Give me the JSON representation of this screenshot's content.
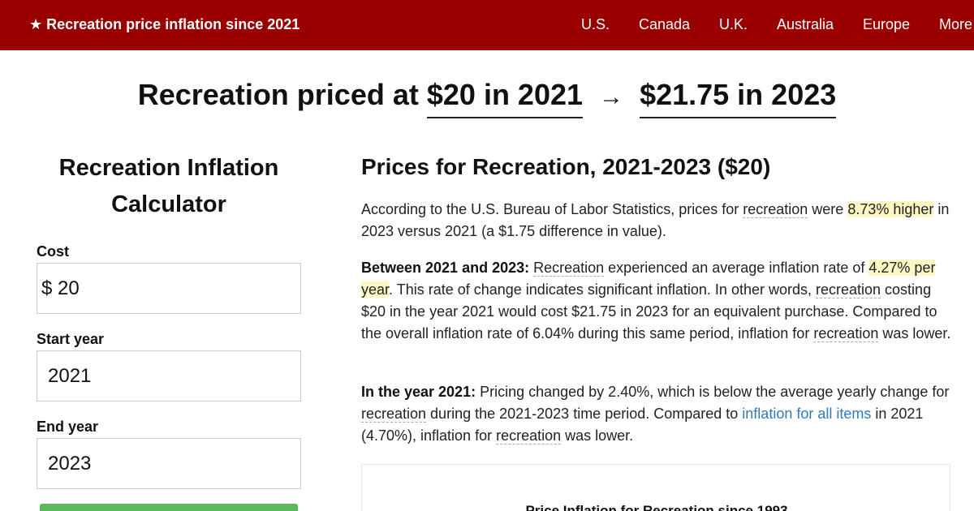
{
  "nav": {
    "brand": "★ Recreation price inflation since 2021",
    "links": [
      "U.S.",
      "Canada",
      "U.K.",
      "Australia",
      "Europe",
      "More"
    ]
  },
  "headline": {
    "prefix": "Recreation priced at",
    "start": "$20 in 2021",
    "arrow": "→",
    "end": "$21.75 in 2023"
  },
  "calculator": {
    "title": "Recreation Inflation Calculator",
    "cost_label": "Cost",
    "currency_symbol": "$",
    "cost_value": "20",
    "start_label": "Start year",
    "start_value": "2021",
    "end_label": "End year",
    "end_value": "2023",
    "button_color": "#5cb85c"
  },
  "article": {
    "title": "Prices for Recreation, 2021-2023 ($20)",
    "p1": {
      "a": "According to the U.S. Bureau of Labor Statistics, prices for ",
      "term": "recreation",
      "b": " were ",
      "highlight": "8.73% higher",
      "c": " in 2023 versus 2021 (a $1.75 difference in value)."
    },
    "p2": {
      "lead": "Between 2021 and 2023:",
      "term1": "Recreation",
      "a": " experienced an average inflation rate of ",
      "highlight": "4.27% per year",
      "b": ". This rate of change indicates significant inflation. In other words, ",
      "term2": "recreation",
      "c": " costing $20 in the year 2021 would cost $21.75 in 2023 for an equivalent purchase. Compared to the overall inflation rate of 6.04% during this same period, inflation for ",
      "term3": "recreation",
      "d": " was lower."
    },
    "p3": {
      "lead": "In the year 2021:",
      "a": " Pricing changed by 2.40%, which is below the average yearly change for ",
      "term1": "recreation",
      "b": " during the 2021-2023 time period. Compared to ",
      "link": "inflation for all items",
      "c": " in 2021 (4.70%), inflation for ",
      "term2": "recreation",
      "d": " was lower."
    },
    "chart_title": "Price Inflation for Recreation since 1993"
  },
  "colors": {
    "nav_bg": "#990000",
    "highlight_bg": "#fdf7c3",
    "link": "#337ab7"
  }
}
